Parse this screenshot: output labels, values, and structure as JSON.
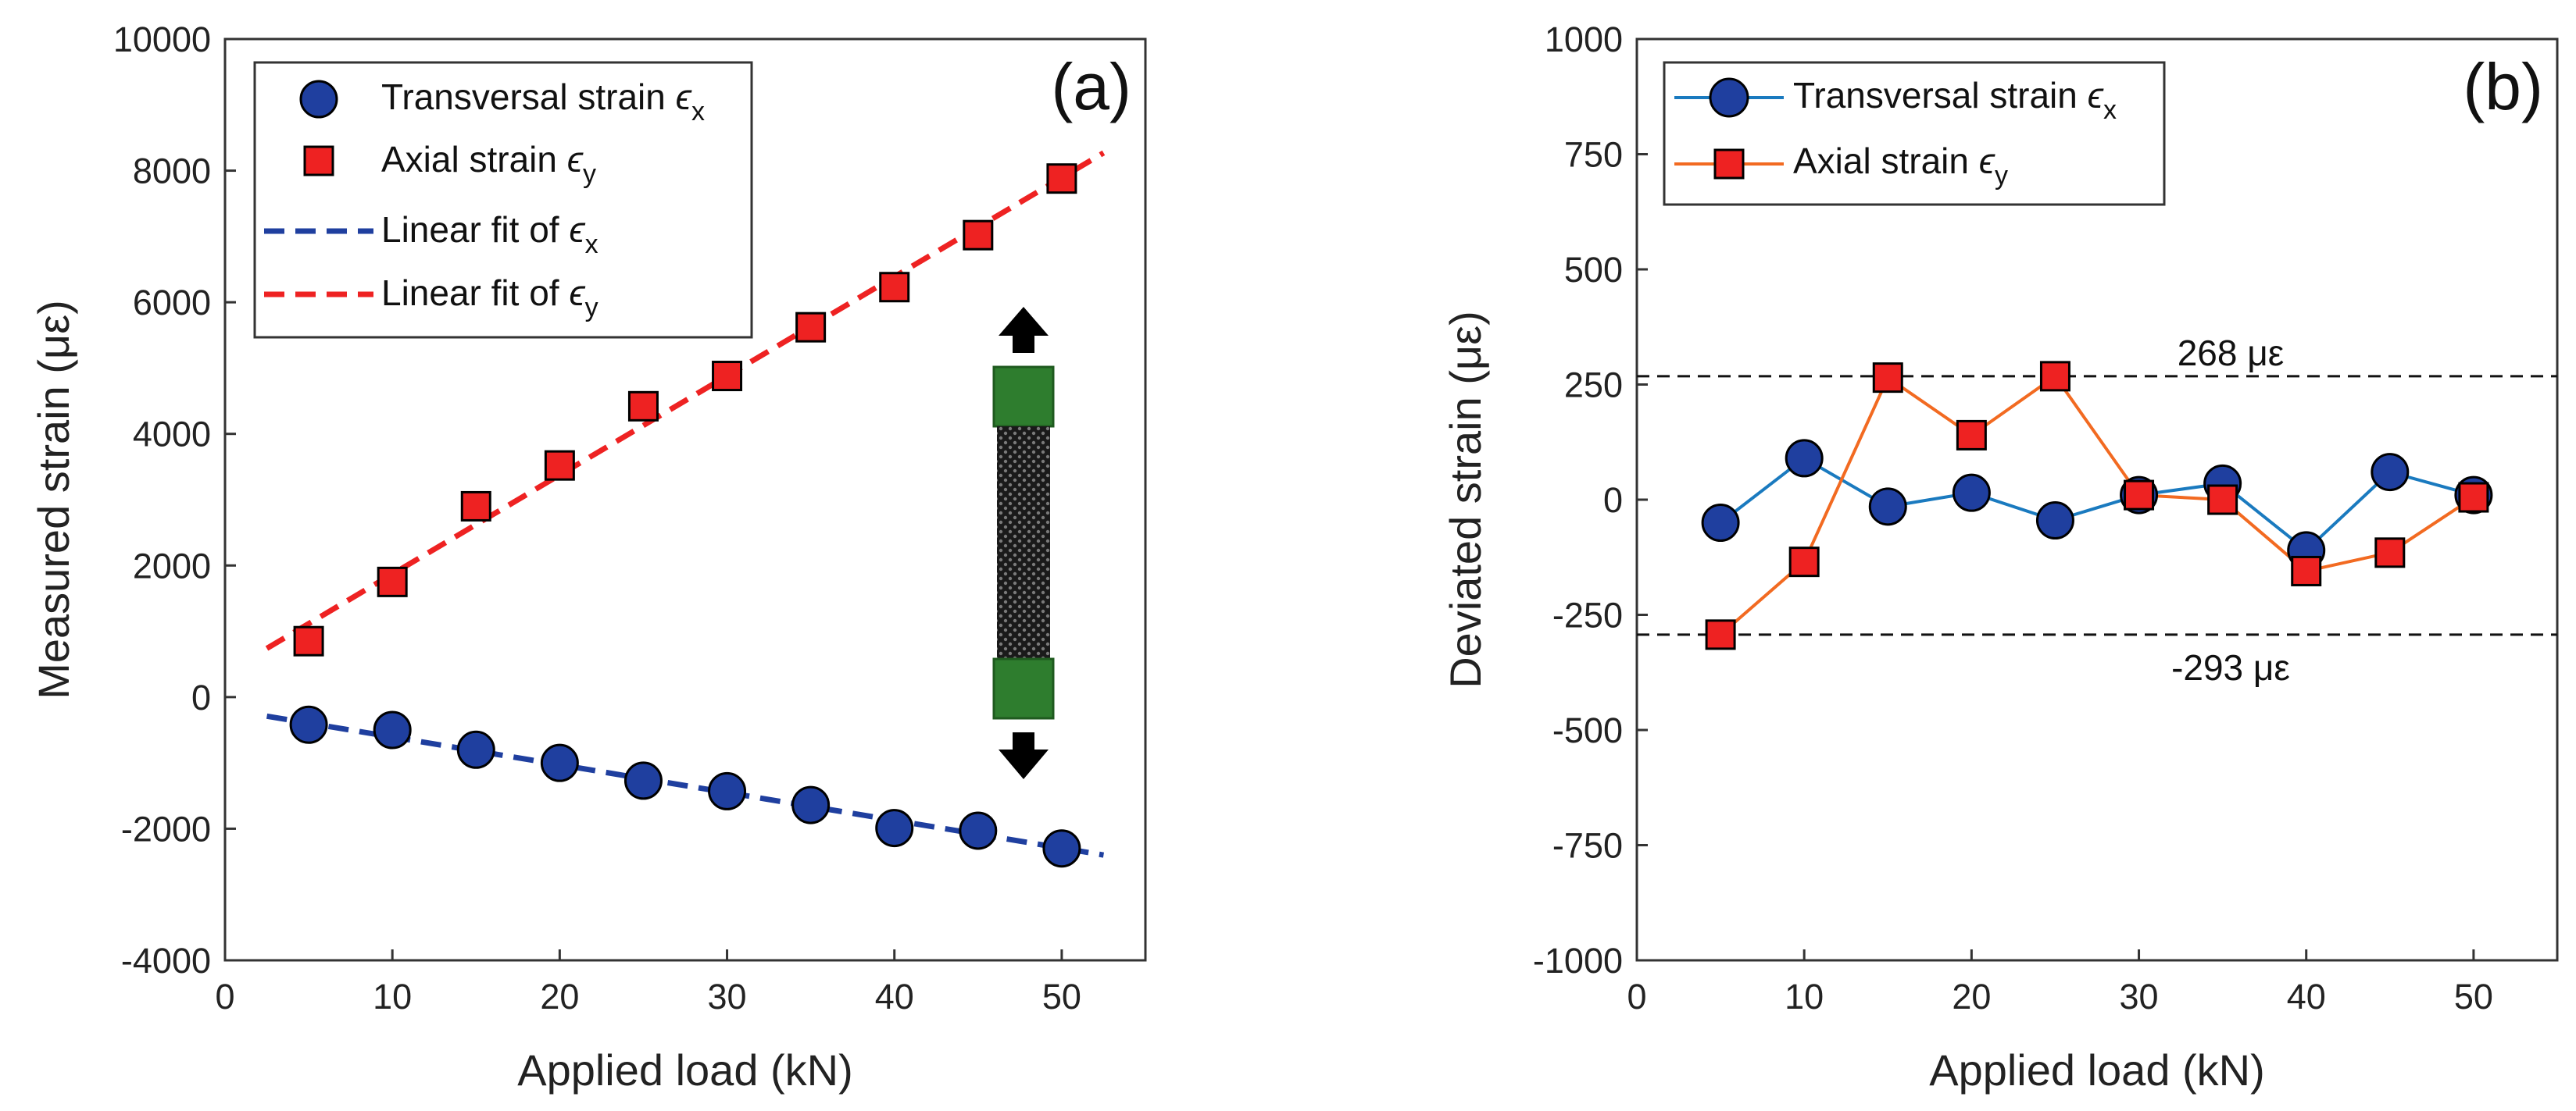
{
  "chart_data": [
    {
      "type": "scatter",
      "panel_label": "(a)",
      "xlabel": "Applied load (kN)",
      "ylabel": "Measured strain (με)",
      "xlim": [
        0,
        55
      ],
      "ylim": [
        -4000,
        10000
      ],
      "xticks": [
        "0",
        "10",
        "20",
        "30",
        "40",
        "50"
      ],
      "yticks": [
        "-4000",
        "-2000",
        "0",
        "2000",
        "4000",
        "6000",
        "8000",
        "10000"
      ],
      "series": [
        {
          "name": "Transversal strain",
          "symbol": "ϵ",
          "subscript": "x",
          "marker": "circle",
          "color": "#1f3f9f",
          "x": [
            5,
            10,
            15,
            20,
            25,
            30,
            35,
            40,
            45,
            50
          ],
          "y": [
            -420,
            -500,
            -800,
            -1000,
            -1270,
            -1430,
            -1640,
            -1990,
            -2030,
            -2300
          ]
        },
        {
          "name": "Axial strain",
          "symbol": "ϵ",
          "subscript": "y",
          "marker": "square",
          "color": "#ee2222",
          "x": [
            5,
            10,
            15,
            20,
            25,
            30,
            35,
            40,
            45,
            50
          ],
          "y": [
            850,
            1750,
            2900,
            3520,
            4420,
            4880,
            5620,
            6230,
            7020,
            7880
          ]
        }
      ],
      "fits": [
        {
          "name": "Linear fit of",
          "symbol": "ϵ",
          "subscript": "x",
          "color": "#1f3f9f",
          "x": [
            2.5,
            52.5
          ],
          "y": [
            -290,
            -2400
          ]
        },
        {
          "name": "Linear fit of",
          "symbol": "ϵ",
          "subscript": "y",
          "color": "#ee2222",
          "x": [
            2.5,
            52.5
          ],
          "y": [
            740,
            8270
          ]
        }
      ],
      "legend_position": "top-left"
    },
    {
      "type": "line",
      "panel_label": "(b)",
      "xlabel": "Applied load (kN)",
      "ylabel": "Deviated strain (με)",
      "xlim": [
        0,
        55
      ],
      "ylim": [
        -1000,
        1000
      ],
      "xticks": [
        "0",
        "10",
        "20",
        "30",
        "40",
        "50"
      ],
      "yticks": [
        "-1000",
        "-750",
        "-500",
        "-250",
        "0",
        "250",
        "500",
        "750",
        "1000"
      ],
      "series": [
        {
          "name": "Transversal strain",
          "symbol": "ϵ",
          "subscript": "x",
          "marker": "circle",
          "line_color": "#1a7abf",
          "marker_color": "#1f3f9f",
          "x": [
            5,
            10,
            15,
            20,
            25,
            30,
            35,
            40,
            45,
            50
          ],
          "y": [
            -50,
            90,
            -15,
            15,
            -45,
            10,
            35,
            -110,
            60,
            10
          ]
        },
        {
          "name": "Axial strain",
          "symbol": "ϵ",
          "subscript": "y",
          "marker": "square",
          "line_color": "#f26a21",
          "marker_color": "#ee2222",
          "x": [
            5,
            10,
            15,
            20,
            25,
            30,
            35,
            40,
            45,
            50
          ],
          "y": [
            -293,
            -135,
            265,
            140,
            268,
            10,
            0,
            -155,
            -115,
            5
          ]
        }
      ],
      "reference_lines": [
        {
          "y": 268,
          "label": "268 με"
        },
        {
          "y": -293,
          "label": "-293 με"
        }
      ],
      "legend_position": "top-left"
    }
  ]
}
